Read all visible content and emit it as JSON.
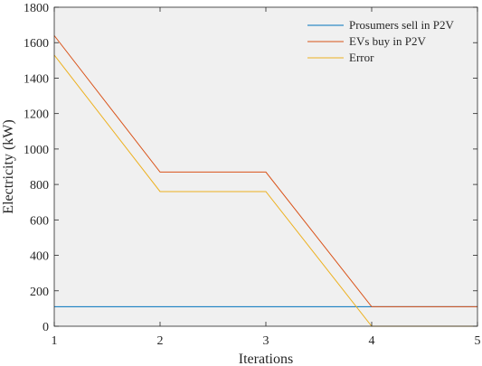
{
  "chart_data": {
    "type": "line",
    "xlabel": "Iterations",
    "ylabel": "Electricity (kW)",
    "xlim": [
      1,
      5
    ],
    "ylim": [
      0,
      1800
    ],
    "xticks": [
      1,
      2,
      3,
      4,
      5
    ],
    "yticks": [
      0,
      200,
      400,
      600,
      800,
      1000,
      1200,
      1400,
      1600,
      1800
    ],
    "grid": false,
    "background": "#f0f0f0",
    "legend_position": "top-right",
    "x": [
      1,
      2,
      3,
      4,
      5
    ],
    "series": [
      {
        "name": "Prosumers sell in P2V",
        "color": "#0072bd",
        "values": [
          110,
          110,
          110,
          110,
          110
        ]
      },
      {
        "name": "EVs buy in P2V",
        "color": "#d95319",
        "values": [
          1640,
          870,
          870,
          110,
          110
        ]
      },
      {
        "name": "Error",
        "color": "#edb120",
        "values": [
          1530,
          760,
          760,
          0,
          0
        ]
      }
    ]
  }
}
